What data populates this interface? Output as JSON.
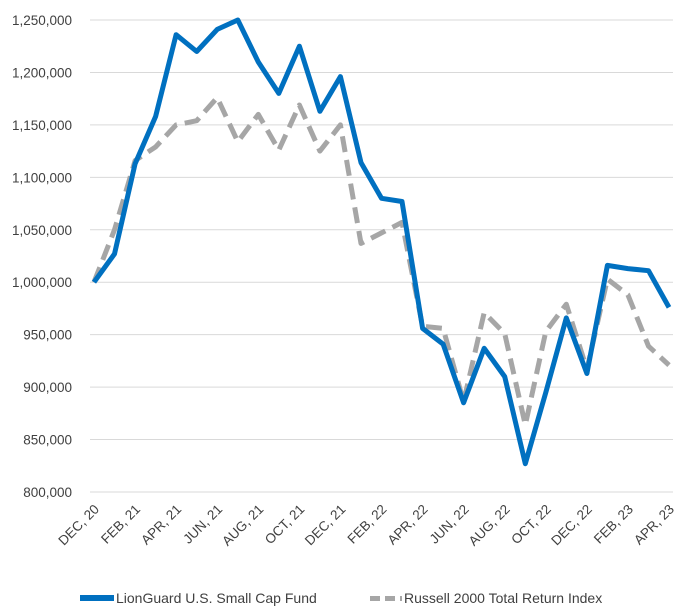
{
  "chart_data": {
    "type": "line",
    "title": "",
    "xlabel": "",
    "ylabel": "",
    "ylim": [
      800000,
      1250000
    ],
    "yticks": [
      "800,000",
      "850,000",
      "900,000",
      "950,000",
      "1,000,000",
      "1,050,000",
      "1,100,000",
      "1,150,000",
      "1,200,000",
      "1,250,000"
    ],
    "xtick_labels": [
      "DEC, 20",
      "FEB, 21",
      "APR, 21",
      "JUN, 21",
      "AUG, 21",
      "OCT, 21",
      "DEC, 21",
      "FEB, 22",
      "APR, 22",
      "JUN, 22",
      "AUG, 22",
      "OCT, 22",
      "DEC, 22",
      "FEB, 23",
      "APR, 23"
    ],
    "grid": true,
    "legend_position": "bottom",
    "x": [
      "DEC, 20",
      "JAN, 21",
      "FEB, 21",
      "MAR, 21",
      "APR, 21",
      "MAY, 21",
      "JUN, 21",
      "JUL, 21",
      "AUG, 21",
      "SEP, 21",
      "OCT, 21",
      "NOV, 21",
      "DEC, 21",
      "JAN, 22",
      "FEB, 22",
      "MAR, 22",
      "APR, 22",
      "MAY, 22",
      "JUN, 22",
      "JUL, 22",
      "AUG, 22",
      "SEP, 22",
      "OCT, 22",
      "NOV, 22",
      "DEC, 22",
      "JAN, 23",
      "FEB, 23",
      "MAR, 23",
      "APR, 23"
    ],
    "series": [
      {
        "name": "LionGuard U.S. Small Cap Fund",
        "color": "#0070c0",
        "style": "solid",
        "values": [
          1000000,
          1027000,
          1113000,
          1158000,
          1236000,
          1220000,
          1241000,
          1250000,
          1210000,
          1180000,
          1225000,
          1163000,
          1196000,
          1114000,
          1080000,
          1077000,
          956000,
          941000,
          885000,
          937000,
          910000,
          827000,
          895000,
          966000,
          913000,
          1016000,
          1013000,
          1011000,
          976000
        ]
      },
      {
        "name": "Russell 2000 Total Return Index",
        "color": "#a6a6a6",
        "style": "dashed",
        "values": [
          1000000,
          1050000,
          1116000,
          1129000,
          1150000,
          1154000,
          1176000,
          1134000,
          1160000,
          1126000,
          1169000,
          1125000,
          1150000,
          1037000,
          1047000,
          1057000,
          958000,
          956000,
          886000,
          971000,
          951000,
          864000,
          953000,
          979000,
          917000,
          1003000,
          988000,
          939000,
          921000
        ]
      }
    ]
  }
}
